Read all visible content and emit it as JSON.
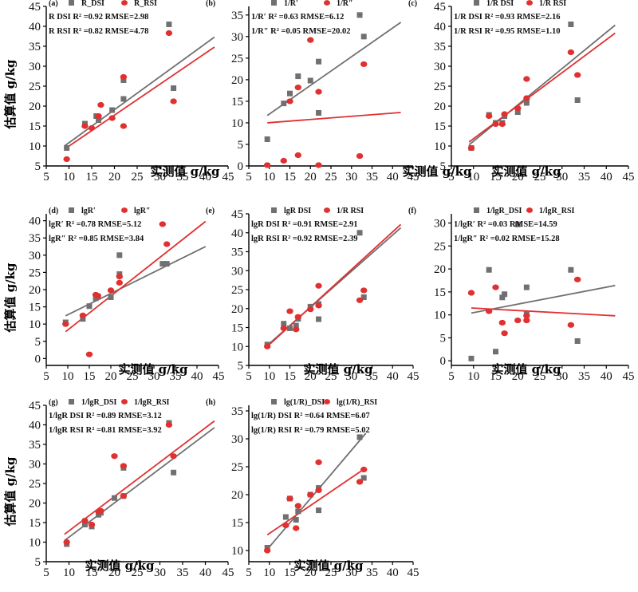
{
  "colors": {
    "dsi": "#707070",
    "rsi": "#e03030",
    "axis": "#000000"
  },
  "axis_labels": {
    "x": "实测值 g/kg",
    "y": "估算值 g/kg"
  },
  "chart_data": [
    {
      "type": "scatter",
      "tag": "(a)",
      "legend": [
        "R_DSI",
        "R_RSI"
      ],
      "annotations": [
        "R DSI R² =0.92   RMSE=2.98",
        "R RSI R² =0.82   RMSE=4.78"
      ],
      "xlim": [
        5,
        45
      ],
      "ylim": [
        5,
        45
      ],
      "x_ticks": [
        5,
        10,
        15,
        20,
        25,
        30,
        35,
        40,
        45
      ],
      "y_ticks": [
        5,
        10,
        15,
        20,
        25,
        30,
        35,
        40,
        45
      ],
      "series": [
        {
          "name": "R_DSI",
          "points": [
            [
              9.5,
              9.5
            ],
            [
              13.5,
              15.6
            ],
            [
              16,
              17.5
            ],
            [
              16.5,
              16.5
            ],
            [
              19.5,
              19
            ],
            [
              22,
              21.8
            ],
            [
              22,
              26.5
            ],
            [
              32,
              40.5
            ],
            [
              33,
              24.5
            ]
          ],
          "fit": [
            [
              9,
              10
            ],
            [
              42,
              37.3
            ]
          ]
        },
        {
          "name": "R_RSI",
          "points": [
            [
              9.5,
              6.7
            ],
            [
              13.5,
              15
            ],
            [
              15,
              14.5
            ],
            [
              16.5,
              17.5
            ],
            [
              17,
              20.3
            ],
            [
              19.5,
              17
            ],
            [
              22,
              15
            ],
            [
              22,
              27.3
            ],
            [
              32,
              38.3
            ],
            [
              33,
              21.2
            ]
          ],
          "fit": [
            [
              9,
              9.2
            ],
            [
              42,
              34.8
            ]
          ]
        }
      ]
    },
    {
      "type": "scatter",
      "tag": "(b)",
      "legend": [
        "1/R′",
        "1/R″"
      ],
      "annotations": [
        "1/R′ R² =0.63   RMSE=6.12",
        "1/R″ R² =0.05   RMSE=20.02"
      ],
      "xlim": [
        5,
        45
      ],
      "ylim": [
        0,
        37
      ],
      "x_ticks": [
        5,
        10,
        15,
        20,
        25,
        30,
        35,
        40,
        45
      ],
      "y_ticks": [
        0,
        5,
        10,
        15,
        20,
        25,
        30,
        35
      ],
      "series": [
        {
          "name": "1/R′",
          "points": [
            [
              9.5,
              6.2
            ],
            [
              13.5,
              14.5
            ],
            [
              15,
              16.8
            ],
            [
              17,
              20.8
            ],
            [
              20,
              19.8
            ],
            [
              22,
              24.2
            ],
            [
              22,
              12.3
            ],
            [
              32,
              35
            ],
            [
              33,
              30
            ]
          ],
          "fit": [
            [
              9.5,
              11.7
            ],
            [
              42,
              33.3
            ]
          ]
        },
        {
          "name": "1/R″",
          "points": [
            [
              9.5,
              0.2
            ],
            [
              13.5,
              1.2
            ],
            [
              15,
              15
            ],
            [
              17,
              2.5
            ],
            [
              17,
              18.2
            ],
            [
              20,
              29.2
            ],
            [
              22,
              17.2
            ],
            [
              22,
              0.2
            ],
            [
              32,
              2.3
            ],
            [
              33,
              23.6
            ]
          ],
          "fit": [
            [
              9.5,
              10
            ],
            [
              42,
              12.4
            ]
          ]
        }
      ]
    },
    {
      "type": "scatter",
      "tag": "(c)",
      "legend": [
        "1/R DSI",
        "1/R RSI"
      ],
      "annotations": [
        "1/R DSI R² =0.93   RMSE=2.16",
        "1/R RSI R² =0.95   RMSE=1.10"
      ],
      "xlim": [
        5,
        45
      ],
      "ylim": [
        5,
        45
      ],
      "x_ticks": [
        5,
        10,
        15,
        20,
        25,
        30,
        35,
        40,
        45
      ],
      "y_ticks": [
        5,
        10,
        15,
        20,
        25,
        30,
        35,
        40,
        45
      ],
      "series": [
        {
          "name": "1/R DSI",
          "points": [
            [
              9.5,
              9.5
            ],
            [
              13.5,
              17.8
            ],
            [
              15,
              15.8
            ],
            [
              16.5,
              15.8
            ],
            [
              17,
              17.5
            ],
            [
              20,
              18.5
            ],
            [
              22,
              20.8
            ],
            [
              22,
              21.5
            ],
            [
              32,
              40.5
            ],
            [
              33.5,
              21.5
            ]
          ],
          "fit": [
            [
              9,
              10.3
            ],
            [
              42,
              40.3
            ]
          ]
        },
        {
          "name": "1/R RSI",
          "points": [
            [
              9.5,
              9.5
            ],
            [
              13.5,
              17.5
            ],
            [
              15,
              15.5
            ],
            [
              16.5,
              15.5
            ],
            [
              17,
              18
            ],
            [
              20,
              19.5
            ],
            [
              22,
              22
            ],
            [
              22,
              26.8
            ],
            [
              32,
              33.5
            ],
            [
              33.5,
              27.8
            ]
          ],
          "fit": [
            [
              9,
              11
            ],
            [
              42,
              38.3
            ]
          ]
        }
      ]
    },
    {
      "type": "scatter",
      "tag": "(d)",
      "legend": [
        "lgR′",
        "lgR″"
      ],
      "annotations": [
        "lgR′  R² =0.78   RMSE=5.12",
        "lgR″  R² =0.85   RMSE=3.84"
      ],
      "xlim": [
        5,
        45
      ],
      "ylim": [
        -2,
        42
      ],
      "x_ticks": [
        5,
        10,
        15,
        20,
        25,
        30,
        35,
        40,
        45
      ],
      "y_ticks": [
        0,
        5,
        10,
        15,
        20,
        25,
        30,
        35,
        40
      ],
      "series": [
        {
          "name": "lgR′",
          "points": [
            [
              9.5,
              10.5
            ],
            [
              13.5,
              11.5
            ],
            [
              15,
              15.2
            ],
            [
              16.5,
              17.5
            ],
            [
              17,
              18
            ],
            [
              20,
              17.8
            ],
            [
              22,
              24.5
            ],
            [
              22,
              30
            ],
            [
              32,
              27.5
            ],
            [
              33,
              27.5
            ]
          ],
          "fit": [
            [
              9.5,
              12.4
            ],
            [
              42,
              32.5
            ]
          ]
        },
        {
          "name": "lgR″",
          "points": [
            [
              9.5,
              10
            ],
            [
              13.5,
              12.5
            ],
            [
              15,
              1.2
            ],
            [
              16.5,
              18.5
            ],
            [
              17,
              18.2
            ],
            [
              20,
              19.8
            ],
            [
              22,
              22
            ],
            [
              22,
              23.8
            ],
            [
              32,
              39
            ],
            [
              33,
              33.2
            ]
          ],
          "fit": [
            [
              9.5,
              7.8
            ],
            [
              42,
              39.8
            ]
          ]
        }
      ]
    },
    {
      "type": "scatter",
      "tag": "(e)",
      "legend": [
        "lgR DSI",
        "1/R RSI"
      ],
      "annotations": [
        "lgR DSI R² =0.91   RMSE=2.91",
        "lgR RSI R² =0.92   RMSE=2.39"
      ],
      "xlim": [
        5,
        45
      ],
      "ylim": [
        5,
        45
      ],
      "x_ticks": [
        5,
        10,
        15,
        20,
        25,
        30,
        35,
        40,
        45
      ],
      "y_ticks": [
        5,
        10,
        15,
        20,
        25,
        30,
        35,
        40,
        45
      ],
      "series": [
        {
          "name": "lgR DSI",
          "points": [
            [
              9.5,
              10.5
            ],
            [
              13.5,
              16
            ],
            [
              15,
              14.8
            ],
            [
              16.5,
              15.5
            ],
            [
              17,
              17.3
            ],
            [
              20,
              20.5
            ],
            [
              22,
              17.2
            ],
            [
              22,
              21.2
            ],
            [
              32,
              40
            ],
            [
              33,
              23
            ]
          ],
          "fit": [
            [
              9,
              9.8
            ],
            [
              42,
              41.3
            ]
          ]
        },
        {
          "name": "1/R RSI",
          "points": [
            [
              9.5,
              10
            ],
            [
              13.5,
              14.8
            ],
            [
              15,
              19.3
            ],
            [
              16.5,
              14.5
            ],
            [
              17,
              17.8
            ],
            [
              20,
              19.8
            ],
            [
              22,
              20.8
            ],
            [
              22,
              26
            ],
            [
              32,
              22.2
            ],
            [
              33,
              24.8
            ]
          ],
          "fit": [
            [
              9,
              9.5
            ],
            [
              42,
              42.2
            ]
          ]
        }
      ]
    },
    {
      "type": "scatter",
      "tag": "(f)",
      "legend": [
        "1/lgR_DSI",
        "1/lgR_RSI"
      ],
      "annotations": [
        "1/lgR′  R² =0.03   RMSE=14.59",
        "1/lgR″  R² =0.02   RMSE=15.28"
      ],
      "xlim": [
        5,
        45
      ],
      "ylim": [
        -1,
        32
      ],
      "x_ticks": [
        5,
        10,
        15,
        20,
        25,
        30,
        35,
        40,
        45
      ],
      "y_ticks": [
        0,
        5,
        10,
        15,
        20,
        25,
        30
      ],
      "series": [
        {
          "name": "1/lgR_DSI",
          "points": [
            [
              9.5,
              0.5
            ],
            [
              13.5,
              19.8
            ],
            [
              15,
              2
            ],
            [
              16.5,
              13.8
            ],
            [
              17,
              14.5
            ],
            [
              20,
              29.7
            ],
            [
              22,
              16
            ],
            [
              22,
              10.2
            ],
            [
              32,
              19.8
            ],
            [
              33.5,
              4.3
            ]
          ],
          "fit": [
            [
              9.5,
              10.4
            ],
            [
              42,
              16.4
            ]
          ]
        },
        {
          "name": "1/lgR_RSI",
          "points": [
            [
              9.5,
              14.8
            ],
            [
              13.5,
              10.8
            ],
            [
              15,
              16
            ],
            [
              16.5,
              8.3
            ],
            [
              17,
              6
            ],
            [
              20,
              8.8
            ],
            [
              22,
              8.8
            ],
            [
              22,
              9.8
            ],
            [
              32,
              7.8
            ],
            [
              33.5,
              17.7
            ]
          ],
          "fit": [
            [
              9.5,
              11.5
            ],
            [
              42,
              9.8
            ]
          ]
        }
      ]
    },
    {
      "type": "scatter",
      "tag": "(g)",
      "legend": [
        "1/lgR_DSI",
        "1/lgR_RSI"
      ],
      "annotations": [
        "1/lgR DSI R² =0.89   RMSE=3.12",
        "1/lgR RSI R² =0.81   RMSE=3.92"
      ],
      "xlim": [
        5,
        45
      ],
      "ylim": [
        5,
        45
      ],
      "x_ticks": [
        5,
        10,
        15,
        20,
        25,
        30,
        35,
        40,
        45
      ],
      "y_ticks": [
        5,
        10,
        15,
        20,
        25,
        30,
        35,
        40,
        45
      ],
      "series": [
        {
          "name": "1/lgR_DSI",
          "points": [
            [
              9.5,
              9.5
            ],
            [
              13.5,
              14.5
            ],
            [
              15,
              14
            ],
            [
              16.5,
              17
            ],
            [
              17,
              17.5
            ],
            [
              20,
              21.3
            ],
            [
              22,
              21.8
            ],
            [
              22,
              29
            ],
            [
              32,
              40.5
            ],
            [
              33,
              27.8
            ]
          ],
          "fit": [
            [
              9,
              10.4
            ],
            [
              42,
              39.3
            ]
          ]
        },
        {
          "name": "1/lgR_RSI",
          "points": [
            [
              9.5,
              10
            ],
            [
              13.5,
              15.5
            ],
            [
              15,
              14.5
            ],
            [
              16.5,
              17.8
            ],
            [
              17,
              18
            ],
            [
              20,
              32
            ],
            [
              22,
              21.8
            ],
            [
              22,
              29.5
            ],
            [
              32,
              40
            ],
            [
              33,
              32
            ]
          ],
          "fit": [
            [
              9,
              12
            ],
            [
              42,
              41
            ]
          ]
        }
      ]
    },
    {
      "type": "scatter",
      "tag": "(h)",
      "legend": [
        "lg(1/R)_DSI",
        "lg(1/R)_RSI"
      ],
      "annotations": [
        "lg(1/R) DSI R² =0.64   RMSE=6.07",
        "lg(1/R) RSI R² =0.79   RMSE=5.02"
      ],
      "xlim": [
        5,
        45
      ],
      "ylim": [
        8,
        36
      ],
      "x_ticks": [
        5,
        10,
        15,
        20,
        25,
        30,
        35,
        40,
        45
      ],
      "y_ticks": [
        10,
        15,
        20,
        25,
        30,
        35
      ],
      "series": [
        {
          "name": "lg(1/R)_DSI",
          "points": [
            [
              9.5,
              10.5
            ],
            [
              14,
              16
            ],
            [
              15,
              19.3
            ],
            [
              16.5,
              15.5
            ],
            [
              17,
              17
            ],
            [
              20,
              20
            ],
            [
              22,
              17.2
            ],
            [
              22,
              21.2
            ],
            [
              32,
              30.3
            ],
            [
              33,
              23
            ]
          ],
          "fit": [
            [
              9.5,
              10.2
            ],
            [
              33.5,
              31
            ]
          ]
        },
        {
          "name": "lg(1/R)_RSI",
          "points": [
            [
              9.5,
              10
            ],
            [
              14,
              14.5
            ],
            [
              15,
              19.3
            ],
            [
              16.5,
              14
            ],
            [
              17,
              18
            ],
            [
              20,
              20
            ],
            [
              22,
              20.8
            ],
            [
              22,
              25.8
            ],
            [
              32,
              22.3
            ],
            [
              33,
              24.5
            ]
          ],
          "fit": [
            [
              9.5,
              12.8
            ],
            [
              33.5,
              24.8
            ]
          ]
        }
      ]
    }
  ]
}
